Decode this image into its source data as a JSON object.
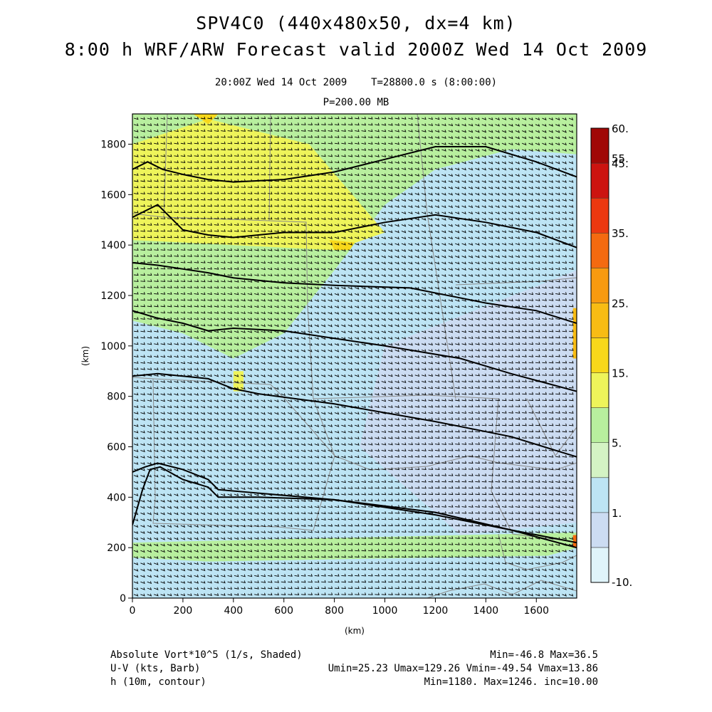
{
  "header": {
    "title_line1": "SPV4C0 (440x480x50, dx=4 km)",
    "title_line2": "8:00 h WRF/ARW Forecast valid 2000Z Wed 14 Oct 2009",
    "valid_line": "20:00Z Wed 14 Oct 2009    T=28800.0 s (8:00:00)",
    "level_line": "P=200.00 MB"
  },
  "footer": {
    "shaded_label": "Absolute Vort*10^5 (1/s, Shaded)",
    "shaded_stats": "Min=-46.8 Max=36.5",
    "barb_label": "U-V (kts, Barb)",
    "barb_stats": "Umin=25.23 Umax=129.26 Vmin=-49.54 Vmax=13.86",
    "contour_label": "h (10m, contour)",
    "contour_stats": "Min=1180. Max=1246. inc=10.00"
  },
  "colors": {
    "level_colors": [
      "#e0f4fa",
      "#ccdcf2",
      "#bde4f4",
      "#d4f3c4",
      "#b8ef9e",
      "#eef45a",
      "#f8d81a",
      "#f8bc14",
      "#f89a10",
      "#f46a10",
      "#ec3810",
      "#cc1410",
      "#a00806"
    ],
    "contour": "#000000",
    "barb": "#000000",
    "map_lines": "#8a8a8a"
  },
  "chart_data": {
    "type": "heatmap",
    "xlabel": "(km)",
    "ylabel": "(km)",
    "xlim": [
      0,
      1760
    ],
    "ylim": [
      0,
      1920
    ],
    "x_ticks": [
      0,
      200,
      400,
      600,
      800,
      1000,
      1200,
      1400,
      1600
    ],
    "y_ticks": [
      0,
      200,
      400,
      600,
      800,
      1000,
      1200,
      1400,
      1600,
      1800
    ],
    "colorbar": {
      "tick_labels": [
        "-10.",
        "1.",
        "5.",
        "15.",
        "25.",
        "35.",
        "45.",
        "55.",
        "60."
      ],
      "tick_values": [
        -10,
        1,
        5,
        15,
        25,
        35,
        45,
        55,
        60
      ],
      "num_levels": 13
    },
    "contours": [
      {
        "level_index": 0,
        "points": [
          [
            0,
            290
          ],
          [
            40,
            430
          ],
          [
            70,
            510
          ],
          [
            110,
            520
          ],
          [
            200,
            470
          ],
          [
            300,
            440
          ],
          [
            340,
            400
          ],
          [
            500,
            400
          ],
          [
            800,
            390
          ],
          [
            1200,
            330
          ],
          [
            1500,
            270
          ],
          [
            1760,
            200
          ]
        ]
      },
      {
        "level_index": 1,
        "points": [
          [
            0,
            500
          ],
          [
            50,
            520
          ],
          [
            100,
            535
          ],
          [
            200,
            510
          ],
          [
            300,
            470
          ],
          [
            340,
            430
          ],
          [
            800,
            390
          ],
          [
            1200,
            340
          ],
          [
            1500,
            270
          ],
          [
            1760,
            220
          ]
        ]
      },
      {
        "level_index": 2,
        "points": [
          [
            0,
            880
          ],
          [
            100,
            890
          ],
          [
            200,
            880
          ],
          [
            300,
            870
          ],
          [
            400,
            830
          ],
          [
            500,
            810
          ],
          [
            800,
            770
          ],
          [
            1200,
            700
          ],
          [
            1500,
            640
          ],
          [
            1760,
            560
          ]
        ]
      },
      {
        "level_index": 3,
        "points": [
          [
            0,
            1140
          ],
          [
            100,
            1110
          ],
          [
            200,
            1090
          ],
          [
            300,
            1060
          ],
          [
            400,
            1070
          ],
          [
            600,
            1060
          ],
          [
            800,
            1030
          ],
          [
            1000,
            1000
          ],
          [
            1300,
            950
          ],
          [
            1500,
            890
          ],
          [
            1760,
            820
          ]
        ]
      },
      {
        "level_index": 4,
        "points": [
          [
            0,
            1330
          ],
          [
            100,
            1320
          ],
          [
            300,
            1290
          ],
          [
            400,
            1270
          ],
          [
            600,
            1250
          ],
          [
            800,
            1240
          ],
          [
            1100,
            1230
          ],
          [
            1400,
            1170
          ],
          [
            1600,
            1140
          ],
          [
            1760,
            1090
          ]
        ]
      },
      {
        "level_index": 5,
        "points": [
          [
            0,
            1510
          ],
          [
            100,
            1560
          ],
          [
            200,
            1460
          ],
          [
            300,
            1440
          ],
          [
            400,
            1430
          ],
          [
            600,
            1450
          ],
          [
            800,
            1450
          ],
          [
            1000,
            1490
          ],
          [
            1200,
            1520
          ],
          [
            1400,
            1490
          ],
          [
            1600,
            1450
          ],
          [
            1760,
            1390
          ]
        ]
      },
      {
        "level_index": 6,
        "points": [
          [
            0,
            1700
          ],
          [
            60,
            1730
          ],
          [
            120,
            1700
          ],
          [
            200,
            1680
          ],
          [
            300,
            1660
          ],
          [
            400,
            1650
          ],
          [
            600,
            1660
          ],
          [
            800,
            1690
          ],
          [
            1000,
            1740
          ],
          [
            1200,
            1790
          ],
          [
            1400,
            1790
          ],
          [
            1600,
            1730
          ],
          [
            1760,
            1670
          ]
        ]
      }
    ],
    "shading_regions": [
      {
        "level_index": 4,
        "points": [
          [
            0,
            1920
          ],
          [
            1760,
            1920
          ],
          [
            1760,
            1760
          ],
          [
            1500,
            1780
          ],
          [
            1200,
            1700
          ],
          [
            1000,
            1560
          ],
          [
            800,
            1300
          ],
          [
            600,
            1050
          ],
          [
            400,
            950
          ],
          [
            200,
            1050
          ],
          [
            0,
            1100
          ]
        ]
      },
      {
        "level_index": 5,
        "points": [
          [
            0,
            1800
          ],
          [
            300,
            1900
          ],
          [
            700,
            1800
          ],
          [
            1000,
            1450
          ],
          [
            800,
            1380
          ],
          [
            400,
            1400
          ],
          [
            0,
            1420
          ]
        ]
      },
      {
        "level_index": 6,
        "points": [
          [
            240,
            1920
          ],
          [
            340,
            1920
          ],
          [
            300,
            1880
          ]
        ]
      },
      {
        "level_index": 6,
        "points": [
          [
            780,
            1420
          ],
          [
            880,
            1410
          ],
          [
            860,
            1380
          ],
          [
            800,
            1380
          ]
        ]
      },
      {
        "level_index": 4,
        "points": [
          [
            0,
            220
          ],
          [
            1760,
            260
          ],
          [
            1760,
            200
          ],
          [
            1400,
            100
          ],
          [
            800,
            120
          ],
          [
            0,
            160
          ]
        ]
      },
      {
        "level_index": 2,
        "points": [
          [
            0,
            140
          ],
          [
            1760,
            170
          ],
          [
            1760,
            0
          ],
          [
            0,
            0
          ]
        ]
      },
      {
        "level_index": 1,
        "points": [
          [
            1000,
            1000
          ],
          [
            1760,
            1300
          ],
          [
            1760,
            300
          ],
          [
            1300,
            250
          ],
          [
            900,
            600
          ]
        ]
      },
      {
        "level_index": 5,
        "points": [
          [
            400,
            900
          ],
          [
            440,
            900
          ],
          [
            440,
            820
          ],
          [
            400,
            820
          ]
        ]
      },
      {
        "level_index": 9,
        "points": [
          [
            1745,
            250
          ],
          [
            1760,
            250
          ],
          [
            1760,
            200
          ],
          [
            1745,
            200
          ]
        ]
      },
      {
        "level_index": 7,
        "points": [
          [
            1745,
            1150
          ],
          [
            1760,
            1150
          ],
          [
            1760,
            950
          ],
          [
            1745,
            950
          ]
        ]
      }
    ]
  }
}
